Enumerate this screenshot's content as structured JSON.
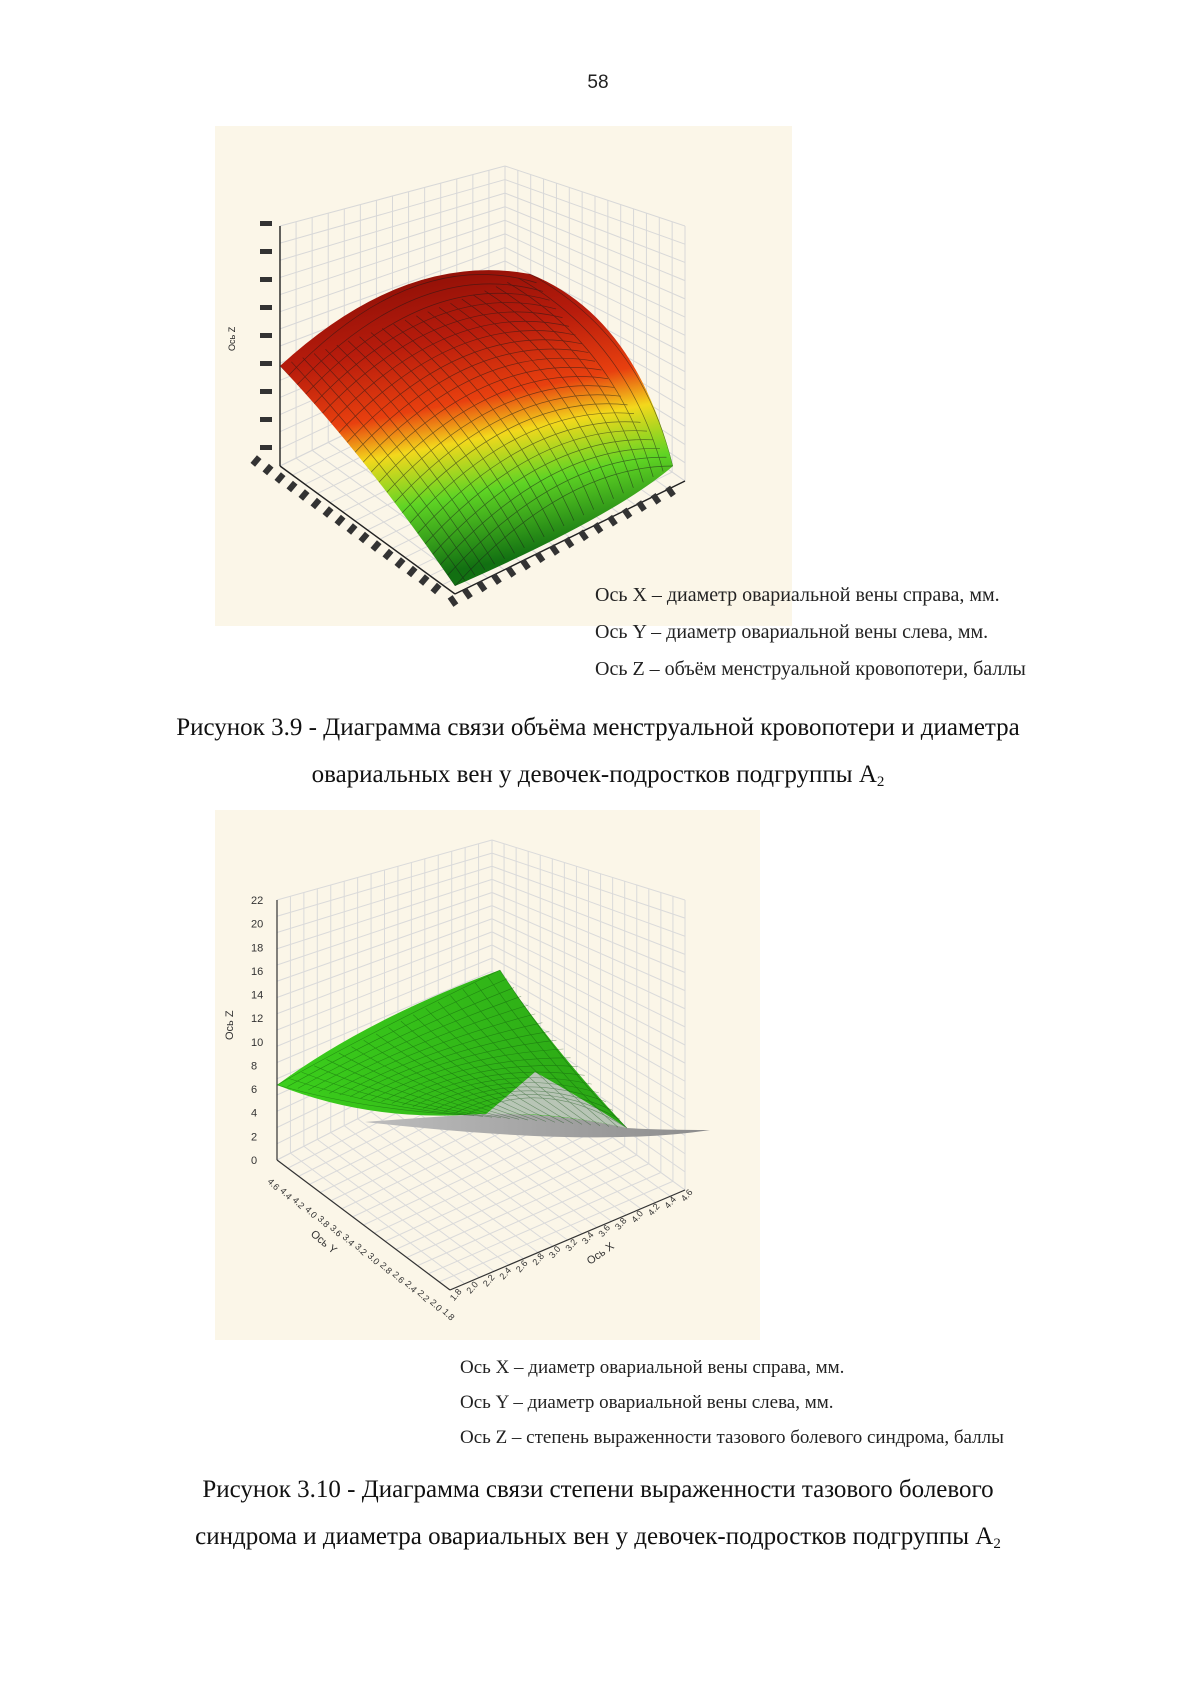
{
  "page": {
    "number": "58"
  },
  "figure1": {
    "legend": [
      "Ось X – диаметр овариальной вены справа, мм.",
      "Ось Y – диаметр овариальной вены слева, мм.",
      "Ось Z – объём менструальной кровопотери, баллы"
    ],
    "caption_line1": "Рисунок 3.9 - Диаграмма связи объёма менструальной кровопотери и диаметра",
    "caption_line2": "овариальных вен у девочек-подростков подгруппы А",
    "caption_sub": "2",
    "chart_data": {
      "type": "surface",
      "z_axis_label": "Ось Z",
      "colors": [
        "#8b0000",
        "#d42a10",
        "#f0e020",
        "#3ec51c",
        "#147814"
      ]
    }
  },
  "figure2": {
    "legend": [
      "Ось X – диаметр овариальной вены справа, мм.",
      "Ось Y – диаметр овариальной вены слева, мм.",
      "Ось Z – степень выраженности тазового болевого синдрома, баллы"
    ],
    "caption_line1": "Рисунок 3.10 - Диаграмма связи степени выраженности тазового болевого",
    "caption_line2": "синдрома и диаметра овариальных вен у девочек-подростков подгруппы А",
    "caption_sub": "2",
    "chart_data": {
      "type": "surface",
      "z_axis_label": "Ось Z",
      "x_axis_label": "Ось X",
      "y_axis_label": "Ось Y",
      "z_ticks": [
        "22",
        "20",
        "18",
        "16",
        "14",
        "12",
        "10",
        "8",
        "6",
        "4",
        "2",
        "0"
      ],
      "x_ticks": [
        "4.6",
        "4.4",
        "4.2",
        "4.0",
        "3.8",
        "3.6",
        "3.4",
        "3.2",
        "3.0",
        "2.8",
        "2.6",
        "2.4",
        "2.2",
        "2.0",
        "1.8"
      ],
      "y_ticks": [
        "4.6",
        "4.4",
        "4.2",
        "4.0",
        "3.8",
        "3.6",
        "3.4",
        "3.2",
        "3.0",
        "2.8",
        "2.6",
        "2.4",
        "2.2",
        "2.0",
        "1.8"
      ],
      "ylim": [
        0,
        22
      ],
      "colors": [
        "#2fbf1a",
        "#9ae84a",
        "#b8b8b8"
      ]
    }
  }
}
